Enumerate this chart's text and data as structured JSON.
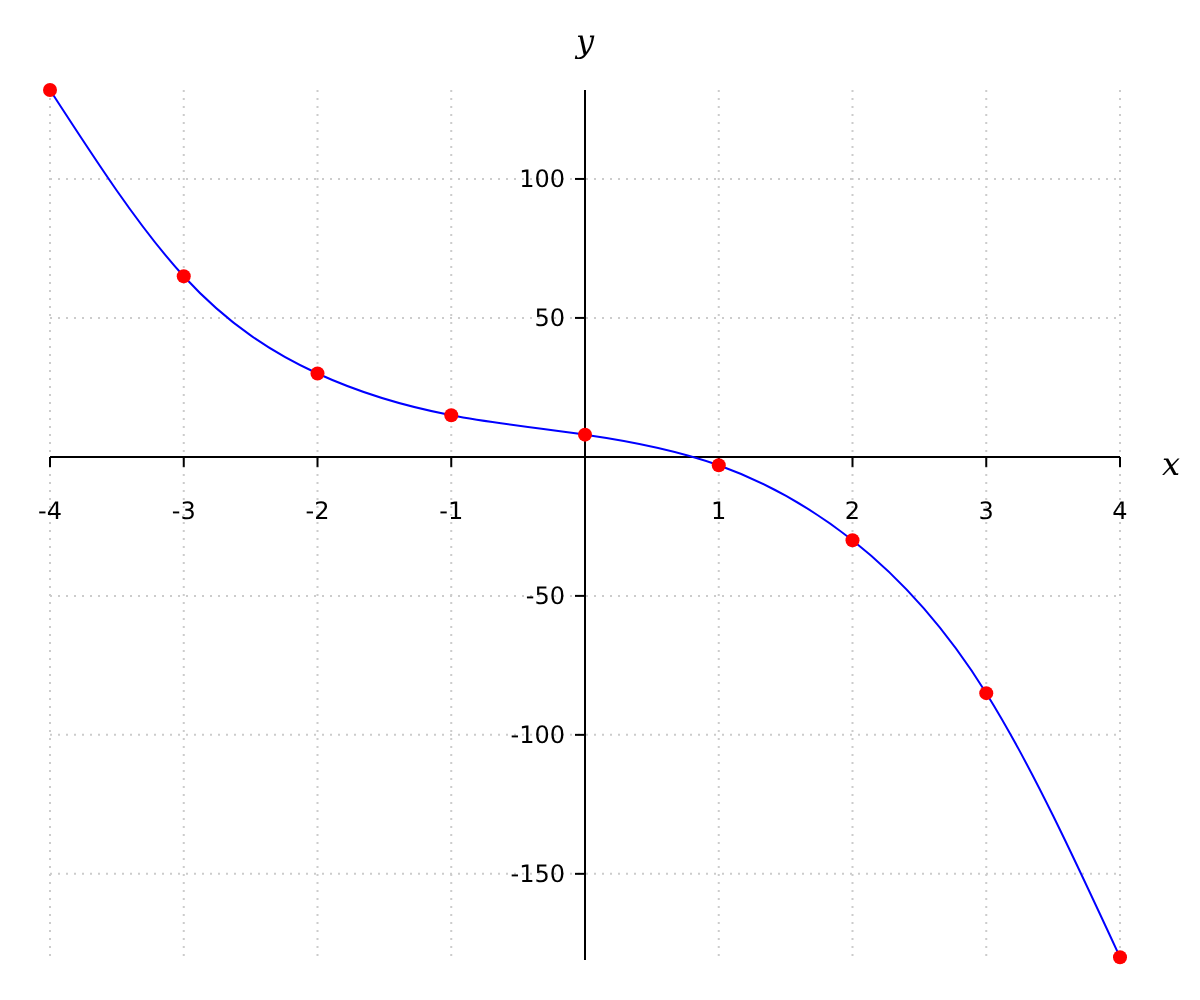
{
  "chart_data": {
    "type": "line",
    "xlabel": "x",
    "ylabel": "y",
    "x": [
      -4,
      -3,
      -2,
      -1,
      0,
      1,
      2,
      3,
      4
    ],
    "series": [
      {
        "color": "#0000ff",
        "values": [
          132,
          65,
          30,
          15,
          8,
          -3,
          -30,
          -85,
          -180
        ]
      },
      {
        "type": "scatter",
        "color": "#ff0000",
        "marker": "circle",
        "values": [
          132,
          65,
          30,
          15,
          8,
          -3,
          -30,
          -85,
          -180
        ]
      }
    ],
    "xlim": [
      -4,
      4
    ],
    "ylim": [
      -181,
      132
    ],
    "xticks": [
      -4,
      -3,
      -2,
      -1,
      1,
      2,
      3,
      4
    ],
    "yticks": [
      -150,
      -100,
      -50,
      50,
      100
    ],
    "grid": true
  }
}
